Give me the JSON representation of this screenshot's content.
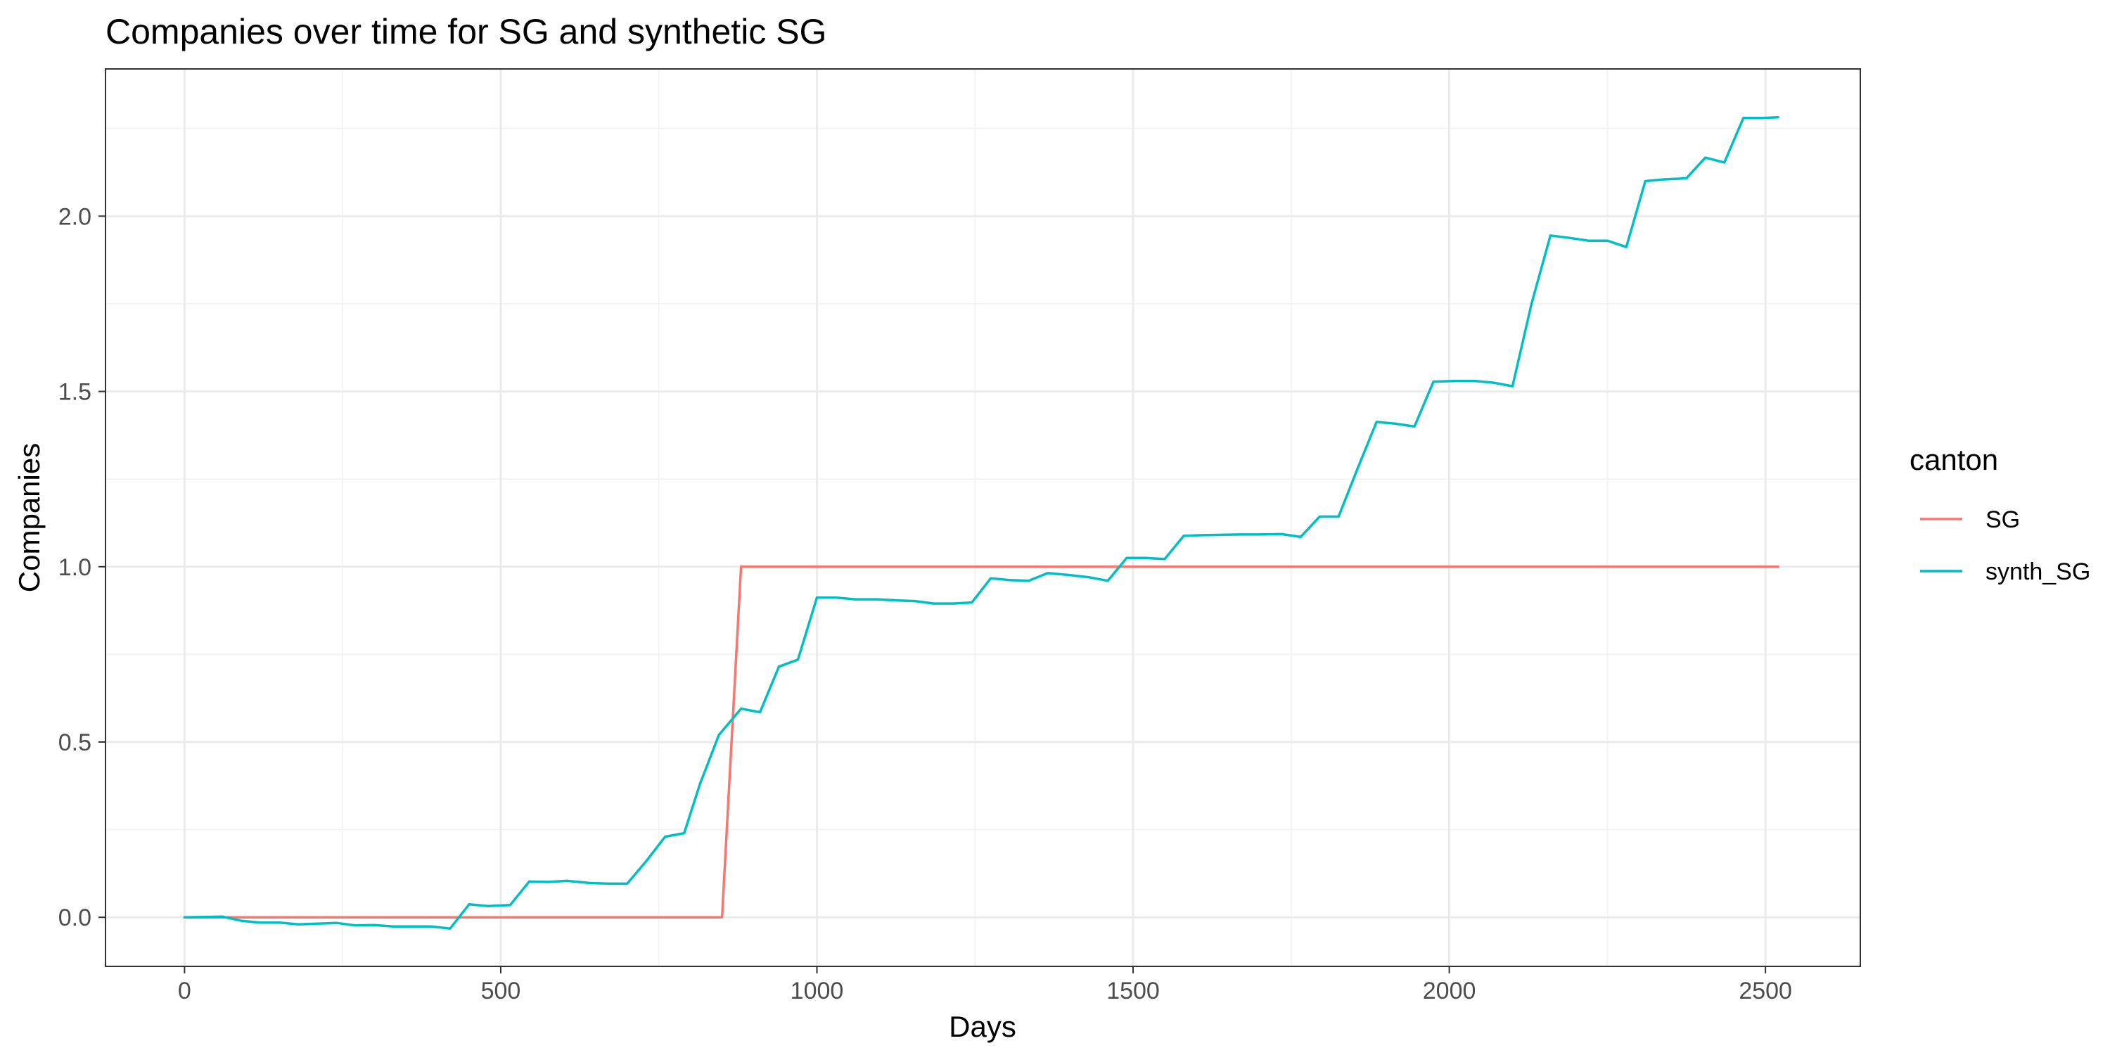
{
  "chart_data": {
    "type": "line",
    "title": "Companies over time for SG and synthetic SG",
    "xlabel": "Days",
    "ylabel": "Companies",
    "xlim": [
      -125,
      2650
    ],
    "ylim": [
      -0.14,
      2.42
    ],
    "x_ticks": [
      0,
      500,
      1000,
      1500,
      2000,
      2500
    ],
    "y_ticks": [
      0.0,
      0.5,
      1.0,
      1.5,
      2.0
    ],
    "x_tick_labels": [
      "0",
      "500",
      "1000",
      "1500",
      "2000",
      "2500"
    ],
    "y_tick_labels": [
      "0.0",
      "0.5",
      "1.0",
      "1.5",
      "2.0"
    ],
    "grid": true,
    "legend": {
      "title": "canton",
      "placement": "right"
    },
    "series": [
      {
        "name": "SG",
        "color": "#F8766D",
        "points": [
          [
            0,
            0.0
          ],
          [
            850,
            0.0
          ],
          [
            880,
            1.0
          ],
          [
            2520,
            1.0
          ]
        ]
      },
      {
        "name": "synth_SG",
        "color": "#00BFC4",
        "points": [
          [
            0,
            0.0
          ],
          [
            60,
            0.002
          ],
          [
            90,
            -0.01
          ],
          [
            120,
            -0.015
          ],
          [
            150,
            -0.015
          ],
          [
            180,
            -0.02
          ],
          [
            210,
            -0.018
          ],
          [
            240,
            -0.016
          ],
          [
            270,
            -0.023
          ],
          [
            300,
            -0.022
          ],
          [
            330,
            -0.026
          ],
          [
            360,
            -0.026
          ],
          [
            390,
            -0.026
          ],
          [
            420,
            -0.032
          ],
          [
            450,
            0.037
          ],
          [
            480,
            0.032
          ],
          [
            515,
            0.035
          ],
          [
            545,
            0.102
          ],
          [
            575,
            0.101
          ],
          [
            605,
            0.104
          ],
          [
            640,
            0.098
          ],
          [
            670,
            0.096
          ],
          [
            700,
            0.096
          ],
          [
            730,
            0.16
          ],
          [
            760,
            0.23
          ],
          [
            790,
            0.24
          ],
          [
            815,
            0.38
          ],
          [
            845,
            0.52
          ],
          [
            880,
            0.595
          ],
          [
            910,
            0.585
          ],
          [
            940,
            0.715
          ],
          [
            970,
            0.735
          ],
          [
            1000,
            0.912
          ],
          [
            1030,
            0.912
          ],
          [
            1060,
            0.907
          ],
          [
            1095,
            0.907
          ],
          [
            1125,
            0.904
          ],
          [
            1155,
            0.902
          ],
          [
            1185,
            0.895
          ],
          [
            1215,
            0.895
          ],
          [
            1245,
            0.898
          ],
          [
            1275,
            0.967
          ],
          [
            1305,
            0.962
          ],
          [
            1335,
            0.96
          ],
          [
            1365,
            0.982
          ],
          [
            1395,
            0.977
          ],
          [
            1430,
            0.97
          ],
          [
            1460,
            0.96
          ],
          [
            1490,
            1.025
          ],
          [
            1520,
            1.025
          ],
          [
            1550,
            1.022
          ],
          [
            1580,
            1.088
          ],
          [
            1610,
            1.09
          ],
          [
            1640,
            1.091
          ],
          [
            1670,
            1.092
          ],
          [
            1700,
            1.092
          ],
          [
            1735,
            1.093
          ],
          [
            1765,
            1.085
          ],
          [
            1795,
            1.143
          ],
          [
            1825,
            1.143
          ],
          [
            1855,
            1.28
          ],
          [
            1885,
            1.413
          ],
          [
            1915,
            1.408
          ],
          [
            1945,
            1.4
          ],
          [
            1975,
            1.528
          ],
          [
            2010,
            1.53
          ],
          [
            2040,
            1.53
          ],
          [
            2070,
            1.525
          ],
          [
            2100,
            1.515
          ],
          [
            2130,
            1.75
          ],
          [
            2160,
            1.945
          ],
          [
            2190,
            1.938
          ],
          [
            2220,
            1.93
          ],
          [
            2250,
            1.93
          ],
          [
            2280,
            1.912
          ],
          [
            2310,
            2.1
          ],
          [
            2340,
            2.105
          ],
          [
            2375,
            2.108
          ],
          [
            2405,
            2.167
          ],
          [
            2435,
            2.153
          ],
          [
            2465,
            2.28
          ],
          [
            2495,
            2.28
          ],
          [
            2520,
            2.282
          ]
        ]
      }
    ]
  }
}
